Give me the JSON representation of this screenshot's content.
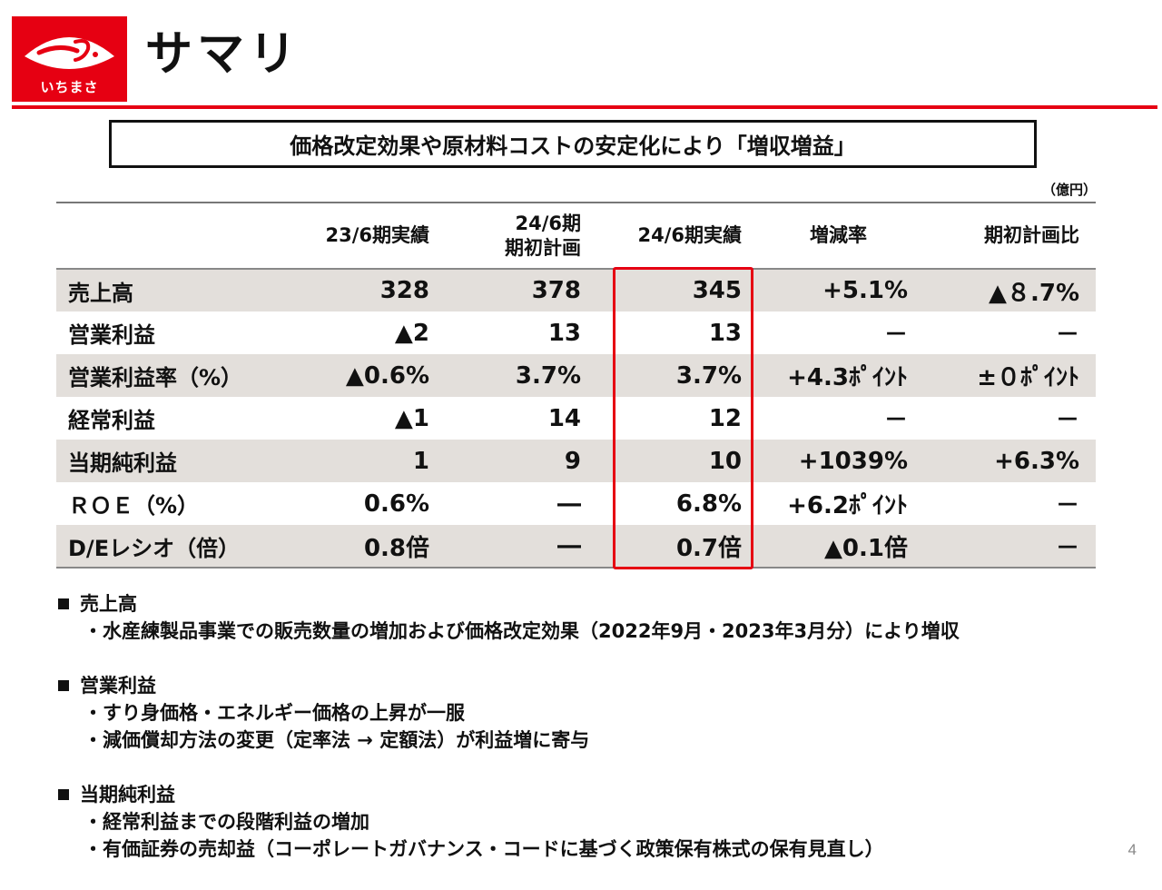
{
  "header": {
    "logo_text": "いちまさ",
    "title": "サマリ"
  },
  "headline": "価格改定効果や原材料コストの安定化により「増収増益」",
  "unit": "（億円）",
  "table": {
    "columns": [
      "",
      "23/6期実績",
      "24/6期\n期初計画",
      "24/6期実績",
      "増減率",
      "期初計画比"
    ],
    "rows": [
      {
        "label": "売上高",
        "values": [
          "328",
          "378",
          "345",
          "+5.1%",
          "▲８.7%"
        ]
      },
      {
        "label": "営業利益",
        "values": [
          "▲2",
          "13",
          "13",
          "－",
          "－"
        ]
      },
      {
        "label": "営業利益率（%）",
        "values": [
          "▲0.6%",
          "3.7%",
          "3.7%",
          "+4.3ﾎﾟｲﾝﾄ",
          "±０ﾎﾟｲﾝﾄ"
        ]
      },
      {
        "label": "経常利益",
        "values": [
          "▲1",
          "14",
          "12",
          "－",
          "－"
        ]
      },
      {
        "label": "当期純利益",
        "values": [
          "1",
          "9",
          "10",
          "+1039%",
          "+6.3%"
        ]
      },
      {
        "label": "ＲＯＥ（%）",
        "values": [
          "0.6%",
          "―",
          "6.8%",
          "+6.2ﾎﾟｲﾝﾄ",
          "－"
        ]
      },
      {
        "label": "D/Eレシオ（倍）",
        "values": [
          "0.8倍",
          "―",
          "0.7倍",
          "▲0.1倍",
          "－"
        ]
      }
    ]
  },
  "notes": [
    {
      "heading": "売上高",
      "items": [
        "・水産練製品事業での販売数量の増加および価格改定効果（2022年9月・2023年3月分）により増収"
      ]
    },
    {
      "heading": "営業利益",
      "items": [
        "・すり身価格・エネルギー価格の上昇が一服",
        "・減価償却方法の変更（定率法 → 定額法）が利益増に寄与"
      ]
    },
    {
      "heading": "当期純利益",
      "items": [
        "・経常利益までの段階利益の増加",
        "・有価証券の売却益（コーポレートガバナンス・コードに基づく政策保有株式の保有見直し）"
      ]
    }
  ],
  "page_number": "4",
  "colors": {
    "brand_red": "#e60012",
    "row_shade": "#e3dfdb"
  }
}
